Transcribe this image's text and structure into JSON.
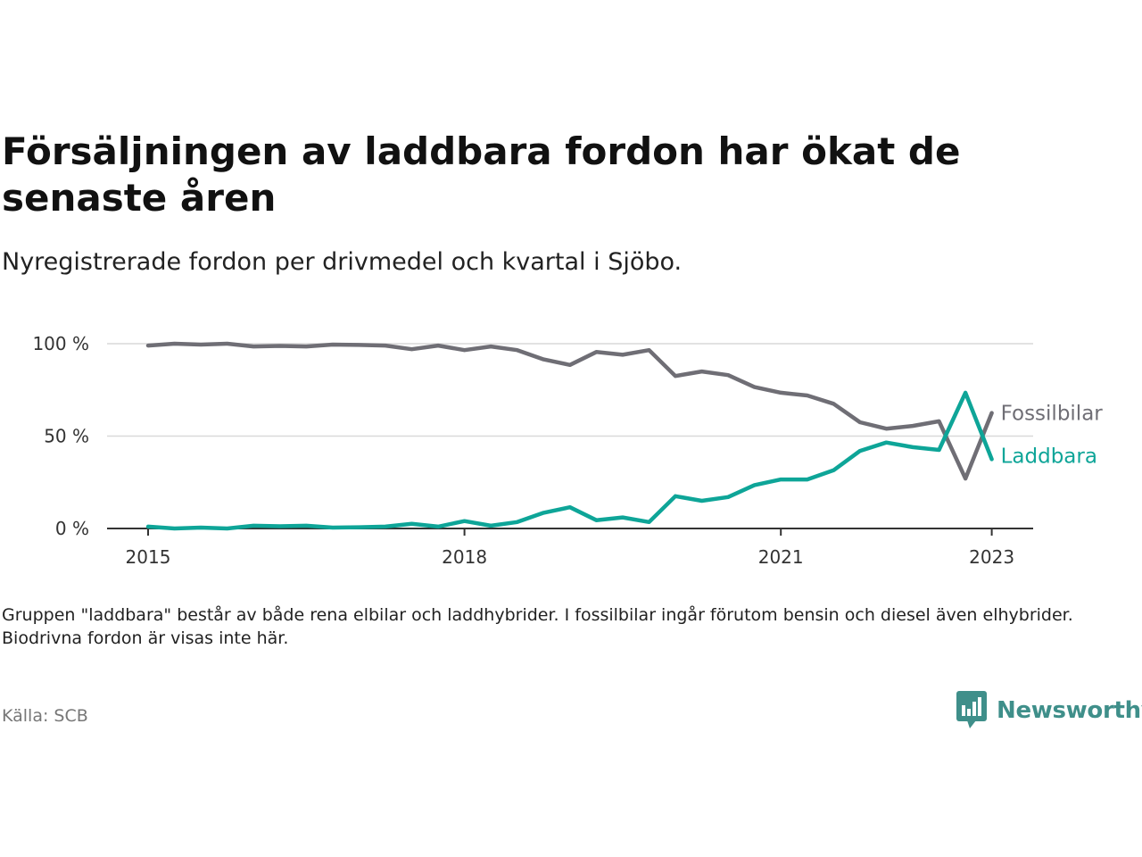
{
  "title": "Försäljningen av laddbara fordon har ökat de senaste åren",
  "subtitle": "Nyregistrerade fordon per drivmedel och kvartal i Sjöbo.",
  "footnote": "Gruppen \"laddbara\" består av både rena elbilar och laddhybrider. I fossilbilar ingår förutom bensin och diesel även elhybrider. Biodrivna fordon är visas inte här.",
  "source": "Källa: SCB",
  "logo_text": "Newsworthy",
  "colors": {
    "fossil": "#6f6e75",
    "laddbara": "#0ea598",
    "brand": "#3f8f8a",
    "grid": "#d9d9d9",
    "axis": "#333333",
    "tick_text": "#333333"
  },
  "chart_data": {
    "type": "line",
    "x_unit": "quarter",
    "x_start": "2015 Q1",
    "x_ticks": [
      {
        "label": "2015",
        "quarter_index": 0
      },
      {
        "label": "2018",
        "quarter_index": 12
      },
      {
        "label": "2021",
        "quarter_index": 24
      },
      {
        "label": "2023",
        "quarter_index": 32
      }
    ],
    "y_ticks": [
      {
        "label": "0 %",
        "value": 0
      },
      {
        "label": "50 %",
        "value": 50
      },
      {
        "label": "100 %",
        "value": 100
      }
    ],
    "ylim": [
      0,
      100
    ],
    "grid": true,
    "series": [
      {
        "name": "Fossilbilar",
        "color_key": "fossil",
        "values": [
          99,
          100,
          99.5,
          100,
          98.5,
          98.8,
          98.5,
          99.5,
          99.3,
          99,
          97,
          99,
          96.5,
          98.5,
          96.5,
          91.5,
          88.5,
          95.5,
          94,
          96.5,
          82.5,
          85,
          83,
          76.5,
          73.5,
          72,
          67.5,
          57.5,
          54,
          55.5,
          58,
          27,
          62.5
        ]
      },
      {
        "name": "Laddbara",
        "color_key": "laddbara",
        "values": [
          1,
          0,
          0.5,
          0,
          1.5,
          1.2,
          1.5,
          0.5,
          0.7,
          1,
          2.5,
          1,
          4,
          1.5,
          3.5,
          8.5,
          11.5,
          4.5,
          6,
          3.5,
          17.5,
          15,
          17,
          23.5,
          26.5,
          26.5,
          31.5,
          42,
          46.5,
          44,
          42.5,
          73.5,
          37.5
        ]
      }
    ]
  }
}
